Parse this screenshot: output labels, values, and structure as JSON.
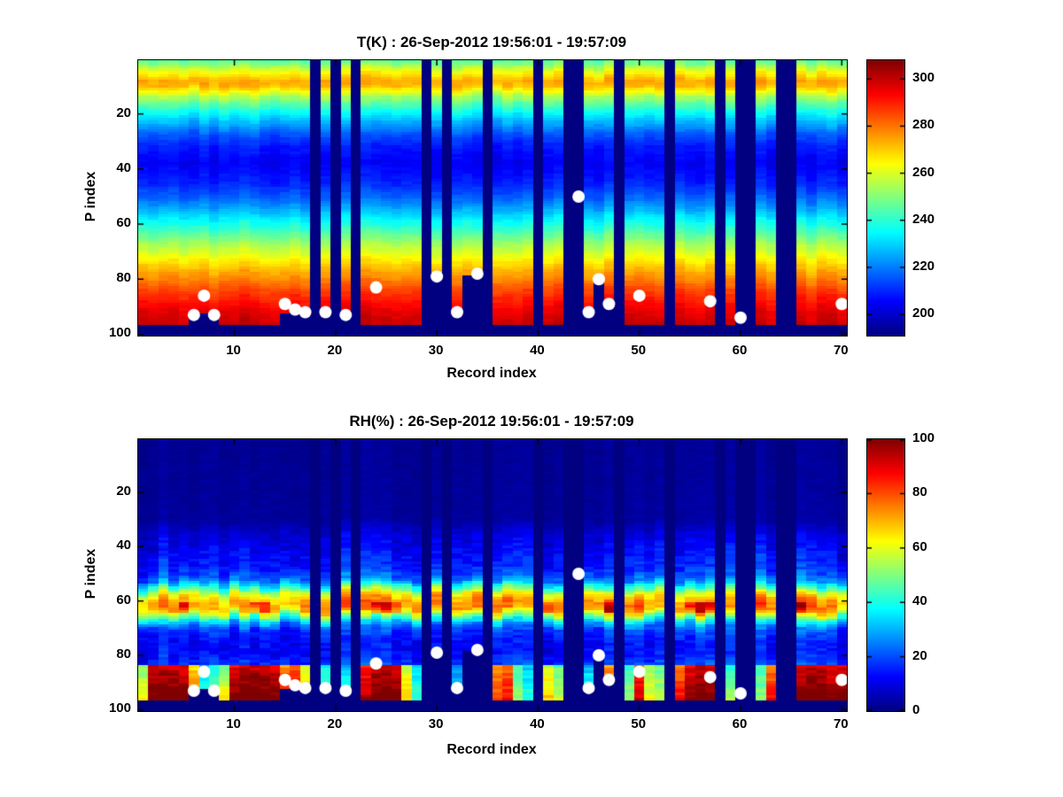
{
  "figure": {
    "background": "#ffffff",
    "missing_data_color": "#00008f",
    "marker_color": "#ffffff"
  },
  "chart_data": [
    {
      "type": "heatmap",
      "id": "temperature",
      "title": "T(K) : 26-Sep-2012 19:56:01 - 19:57:09",
      "xlabel": "Record index",
      "ylabel": "P index",
      "x_ticks": [
        10,
        20,
        30,
        40,
        50,
        60,
        70
      ],
      "y_ticks": [
        20,
        40,
        60,
        80,
        100
      ],
      "x_range": [
        1,
        70
      ],
      "y_range": [
        1,
        100
      ],
      "y_axis_reversed": true,
      "colormap": "jet",
      "color_range": [
        191,
        308
      ],
      "colorbar_ticks": [
        200,
        220,
        240,
        260,
        280,
        300
      ],
      "grid": false,
      "profile_by_p_index": [
        [
          1,
          246
        ],
        [
          3,
          254
        ],
        [
          5,
          264
        ],
        [
          8,
          274
        ],
        [
          10,
          272
        ],
        [
          12,
          263
        ],
        [
          14,
          253
        ],
        [
          16,
          246
        ],
        [
          19,
          237
        ],
        [
          23,
          226
        ],
        [
          27,
          216
        ],
        [
          32,
          208
        ],
        [
          38,
          204
        ],
        [
          45,
          209
        ],
        [
          50,
          216
        ],
        [
          55,
          226
        ],
        [
          60,
          237
        ],
        [
          64,
          246
        ],
        [
          68,
          255
        ],
        [
          72,
          263
        ],
        [
          76,
          271
        ],
        [
          80,
          278
        ],
        [
          84,
          285
        ],
        [
          88,
          291
        ],
        [
          92,
          296
        ],
        [
          96,
          299
        ]
      ],
      "missing_records": [
        18,
        20,
        22,
        29,
        31,
        35,
        40,
        43,
        44,
        48,
        53,
        58,
        60,
        61,
        64,
        65
      ],
      "missing_bottom_rows": [
        97,
        100
      ],
      "mask_below": [
        [
          6,
          93
        ],
        [
          7,
          93
        ],
        [
          8,
          93
        ],
        [
          15,
          93
        ],
        [
          16,
          91
        ],
        [
          17,
          92
        ],
        [
          19,
          92
        ],
        [
          21,
          93
        ],
        [
          30,
          79
        ],
        [
          32,
          92
        ],
        [
          33,
          79
        ],
        [
          34,
          78
        ],
        [
          45,
          92
        ],
        [
          46,
          80
        ],
        [
          47,
          89
        ]
      ],
      "markers": {
        "shape": "circle",
        "color": "#ffffff",
        "radius": 7,
        "points": [
          [
            6,
            93
          ],
          [
            7,
            86
          ],
          [
            8,
            93
          ],
          [
            15,
            89
          ],
          [
            16,
            91
          ],
          [
            17,
            92
          ],
          [
            19,
            92
          ],
          [
            21,
            93
          ],
          [
            24,
            83
          ],
          [
            30,
            79
          ],
          [
            32,
            92
          ],
          [
            34,
            78
          ],
          [
            44,
            50
          ],
          [
            45,
            92
          ],
          [
            46,
            80
          ],
          [
            47,
            89
          ],
          [
            50,
            86
          ],
          [
            57,
            88
          ],
          [
            60,
            94
          ],
          [
            70,
            89
          ]
        ]
      },
      "noise": {
        "record_amp": 2.5,
        "cell_amp": 1.6,
        "band_shift": 0.6,
        "seed": 7
      }
    },
    {
      "type": "heatmap",
      "id": "relative-humidity",
      "title": "RH(%) : 26-Sep-2012 19:56:01 - 19:57:09",
      "xlabel": "Record index",
      "ylabel": "P index",
      "x_ticks": [
        10,
        20,
        30,
        40,
        50,
        60,
        70
      ],
      "y_ticks": [
        20,
        40,
        60,
        80,
        100
      ],
      "x_range": [
        1,
        70
      ],
      "y_range": [
        1,
        100
      ],
      "y_axis_reversed": true,
      "colormap": "jet",
      "color_range": [
        0,
        100
      ],
      "colorbar_ticks": [
        0,
        20,
        40,
        60,
        80,
        100
      ],
      "grid": false,
      "profile_by_p_index": [
        [
          1,
          2
        ],
        [
          30,
          3
        ],
        [
          36,
          9
        ],
        [
          42,
          13
        ],
        [
          48,
          16
        ],
        [
          52,
          24
        ],
        [
          55,
          44
        ],
        [
          57,
          60
        ],
        [
          59,
          70
        ],
        [
          61,
          74
        ],
        [
          63,
          73
        ],
        [
          65,
          55
        ],
        [
          67,
          36
        ],
        [
          70,
          20
        ],
        [
          74,
          14
        ],
        [
          78,
          13
        ],
        [
          82,
          17
        ],
        [
          83,
          19
        ],
        [
          96,
          22
        ]
      ],
      "bottom_rows_range": [
        84,
        96
      ],
      "bottom_rh_by_record": [
        55,
        95,
        97,
        96,
        94,
        70,
        38,
        45,
        55,
        93,
        96,
        97,
        95,
        94,
        78,
        85,
        60,
        0,
        40,
        0,
        35,
        0,
        88,
        96,
        97,
        95,
        60,
        35,
        0,
        25,
        0,
        30,
        40,
        45,
        0,
        75,
        80,
        45,
        35,
        0,
        60,
        50,
        0,
        0,
        35,
        60,
        75,
        0,
        45,
        85,
        55,
        50,
        0,
        80,
        92,
        96,
        94,
        0,
        45,
        0,
        0,
        45,
        80,
        0,
        0,
        95,
        97,
        96,
        92,
        96
      ],
      "band_hot_records": [
        5,
        12,
        13,
        24,
        25,
        26,
        41,
        47,
        55,
        56,
        57,
        66
      ],
      "missing_records": [
        18,
        20,
        22,
        29,
        31,
        35,
        40,
        43,
        44,
        48,
        53,
        58,
        60,
        61,
        64,
        65
      ],
      "missing_bottom_rows": [
        97,
        100
      ],
      "mask_below": [
        [
          6,
          93
        ],
        [
          7,
          93
        ],
        [
          8,
          93
        ],
        [
          15,
          93
        ],
        [
          16,
          91
        ],
        [
          17,
          92
        ],
        [
          19,
          92
        ],
        [
          21,
          93
        ],
        [
          30,
          79
        ],
        [
          32,
          92
        ],
        [
          33,
          79
        ],
        [
          34,
          78
        ],
        [
          45,
          92
        ],
        [
          46,
          80
        ],
        [
          47,
          89
        ]
      ],
      "markers": {
        "shape": "circle",
        "color": "#ffffff",
        "radius": 7,
        "points": [
          [
            6,
            93
          ],
          [
            7,
            86
          ],
          [
            8,
            93
          ],
          [
            15,
            89
          ],
          [
            16,
            91
          ],
          [
            17,
            92
          ],
          [
            19,
            92
          ],
          [
            21,
            93
          ],
          [
            24,
            83
          ],
          [
            30,
            79
          ],
          [
            32,
            92
          ],
          [
            34,
            78
          ],
          [
            44,
            50
          ],
          [
            45,
            92
          ],
          [
            46,
            80
          ],
          [
            47,
            89
          ],
          [
            50,
            86
          ],
          [
            57,
            88
          ],
          [
            60,
            94
          ],
          [
            70,
            89
          ]
        ]
      },
      "noise": {
        "record_amp": 4,
        "cell_amp": 3.5,
        "band_shift": 1.5,
        "seed": 13
      }
    }
  ]
}
